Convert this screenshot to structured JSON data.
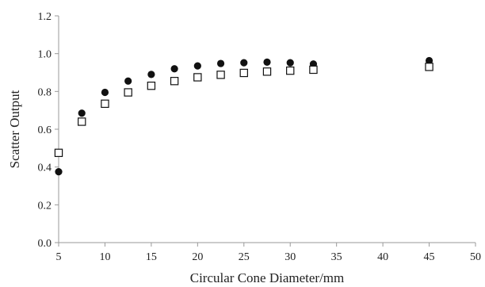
{
  "chart_data": {
    "type": "scatter",
    "title": "",
    "xlabel": "Circular Cone Diameter/mm",
    "ylabel": "Scatter Output",
    "xlim": [
      5,
      50
    ],
    "ylim": [
      0.0,
      1.2
    ],
    "x_ticks": [
      5,
      10,
      15,
      20,
      25,
      30,
      35,
      40,
      45,
      50
    ],
    "x_tick_labels": [
      "5",
      "10",
      "15",
      "20",
      "25",
      "30",
      "35",
      "40",
      "45",
      "50"
    ],
    "y_ticks": [
      0.0,
      0.2,
      0.4,
      0.6,
      0.8,
      1.0,
      1.2
    ],
    "y_tick_labels": [
      "0.0",
      "0.2",
      "0.4",
      "0.6",
      "0.8",
      "1.0",
      "1.2"
    ],
    "grid": false,
    "legend": "none",
    "series": [
      {
        "marker": "filled-circle",
        "color": "#111111",
        "points": [
          [
            5,
            0.375
          ],
          [
            7.5,
            0.685
          ],
          [
            10,
            0.795
          ],
          [
            12.5,
            0.855
          ],
          [
            15,
            0.89
          ],
          [
            17.5,
            0.92
          ],
          [
            20,
            0.935
          ],
          [
            22.5,
            0.948
          ],
          [
            25,
            0.952
          ],
          [
            27.5,
            0.955
          ],
          [
            30,
            0.952
          ],
          [
            32.5,
            0.945
          ],
          [
            45,
            0.963
          ]
        ]
      },
      {
        "marker": "open-square",
        "color": "#111111",
        "points": [
          [
            5,
            0.475
          ],
          [
            7.5,
            0.64
          ],
          [
            10,
            0.735
          ],
          [
            12.5,
            0.795
          ],
          [
            15,
            0.83
          ],
          [
            17.5,
            0.855
          ],
          [
            20,
            0.875
          ],
          [
            22.5,
            0.888
          ],
          [
            25,
            0.898
          ],
          [
            27.5,
            0.905
          ],
          [
            30,
            0.91
          ],
          [
            32.5,
            0.915
          ],
          [
            45,
            0.93
          ]
        ]
      }
    ]
  }
}
